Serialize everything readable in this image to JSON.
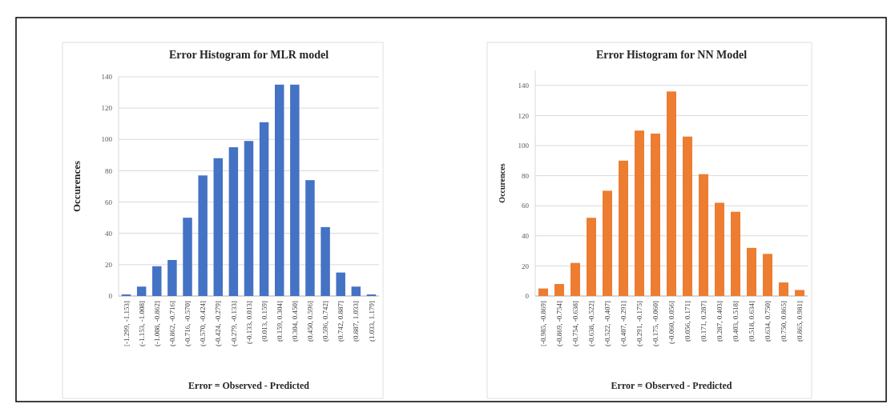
{
  "chart_data": [
    {
      "type": "bar",
      "title": "Error Histogram for MLR model",
      "xlabel": "Error = Observed - Predicted",
      "ylabel": "Occurences",
      "categories": [
        "[-1.299, -1.153]",
        "(-1.153, -1.008]",
        "(-1.008, -0.862]",
        "(-0.862, -0.716]",
        "(-0.716, -0.570]",
        "(-0.570, -0.424]",
        "(-0.424, -0.279]",
        "(-0.279, -0.133]",
        "(-0.133, 0.013]",
        "(0.013, 0.159]",
        "(0.159, 0.304]",
        "(0.304, 0.450]",
        "(0.450, 0.596]",
        "(0.596, 0.742]",
        "(0.742, 0.887]",
        "(0.887, 1.033]",
        "(1.033, 1.179]"
      ],
      "values": [
        1,
        6,
        19,
        23,
        50,
        77,
        88,
        95,
        99,
        111,
        135,
        135,
        74,
        44,
        15,
        6,
        1
      ],
      "color": "#4472c4",
      "ylim": [
        0,
        140
      ],
      "yticks": [
        0,
        20,
        40,
        60,
        80,
        100,
        120,
        140
      ],
      "grid": "y"
    },
    {
      "type": "bar",
      "title": "Error Histogram for NN Model",
      "xlabel": "Error = Observed - Predicted",
      "ylabel": "Occurences",
      "categories": [
        "[-0.985, -0.869]",
        "(-0.869, -0.754]",
        "(-0.754, -0.638]",
        "(-0.638, -0.522]",
        "(-0.522, -0.407]",
        "(-0.407, -0.291]",
        "(-0.291, -0.175]",
        "(-0.175, -0.060]",
        "(-0.060, 0.056]",
        "(0.056, 0.171]",
        "(0.171, 0.287]",
        "(0.287, 0.403]",
        "(0.403, 0.518]",
        "(0.518, 0.634]",
        "(0.634, 0.750]",
        "(0.750, 0.865]",
        "(0.865, 0.981]"
      ],
      "values": [
        5,
        8,
        22,
        52,
        70,
        90,
        110,
        108,
        136,
        106,
        81,
        62,
        56,
        32,
        28,
        9,
        4
      ],
      "color": "#ed7d31",
      "ylim": [
        0,
        150
      ],
      "yticks": [
        0,
        20,
        40,
        60,
        80,
        100,
        120,
        140
      ],
      "grid": "y"
    }
  ]
}
